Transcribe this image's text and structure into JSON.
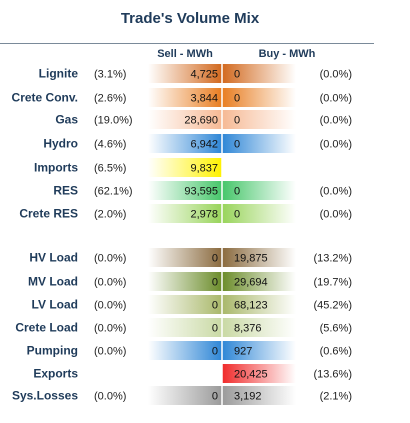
{
  "chart_data": {
    "type": "table",
    "title": "Trade's Volume Mix",
    "columns": [
      "Sell - MWh",
      "Buy - MWh"
    ],
    "rows": [
      {
        "label": "Lignite",
        "sell_pct": "(3.1%)",
        "sell": "4,725",
        "buy": "0",
        "buy_pct": "(0.0%)",
        "sell_color": "#d2691e",
        "buy_color": "#d2691e"
      },
      {
        "label": "Crete Conv.",
        "sell_pct": "(2.6%)",
        "sell": "3,844",
        "buy": "0",
        "buy_pct": "(0.0%)",
        "sell_color": "#e87d20",
        "buy_color": "#e87d20"
      },
      {
        "label": "Gas",
        "sell_pct": "(19.0%)",
        "sell": "28,690",
        "buy": "0",
        "buy_pct": "(0.0%)",
        "sell_color": "#f6b994",
        "buy_color": "#f6b994"
      },
      {
        "label": "Hydro",
        "sell_pct": "(4.6%)",
        "sell": "6,942",
        "buy": "0",
        "buy_pct": "(0.0%)",
        "sell_color": "#2e86d6",
        "buy_color": "#2e86d6"
      },
      {
        "label": "Imports",
        "sell_pct": "(6.5%)",
        "sell": "9,837",
        "buy": "",
        "buy_pct": "",
        "sell_color": "#fff200",
        "buy_color": "#ffffff"
      },
      {
        "label": "RES",
        "sell_pct": "(62.1%)",
        "sell": "93,595",
        "buy": "0",
        "buy_pct": "(0.0%)",
        "sell_color": "#46c66a",
        "buy_color": "#46c66a"
      },
      {
        "label": "Crete RES",
        "sell_pct": "(2.0%)",
        "sell": "2,978",
        "buy": "0",
        "buy_pct": "(0.0%)",
        "sell_color": "#98d45a",
        "buy_color": "#98d45a"
      },
      {
        "label": "HV Load",
        "sell_pct": "(0.0%)",
        "sell": "0",
        "buy": "19,875",
        "buy_pct": "(13.2%)",
        "sell_color": "#8a6a3e",
        "buy_color": "#8a6a3e"
      },
      {
        "label": "MV Load",
        "sell_pct": "(0.0%)",
        "sell": "0",
        "buy": "29,694",
        "buy_pct": "(19.7%)",
        "sell_color": "#6b8c2a",
        "buy_color": "#6b8c2a"
      },
      {
        "label": "LV Load",
        "sell_pct": "(0.0%)",
        "sell": "0",
        "buy": "68,123",
        "buy_pct": "(45.2%)",
        "sell_color": "#a9b86a",
        "buy_color": "#a9b86a"
      },
      {
        "label": "Crete Load",
        "sell_pct": "(0.0%)",
        "sell": "0",
        "buy": "8,376",
        "buy_pct": "(5.6%)",
        "sell_color": "#c9d9a4",
        "buy_color": "#c9d9a4"
      },
      {
        "label": "Pumping",
        "sell_pct": "(0.0%)",
        "sell": "0",
        "buy": "927",
        "buy_pct": "(0.6%)",
        "sell_color": "#2e86d6",
        "buy_color": "#2e86d6"
      },
      {
        "label": "Exports",
        "sell_pct": "",
        "sell": "",
        "buy": "20,425",
        "buy_pct": "(13.6%)",
        "sell_color": "#ffffff",
        "buy_color": "#f02a2a"
      },
      {
        "label": "Sys.Losses",
        "sell_pct": "(0.0%)",
        "sell": "0",
        "buy": "3,192",
        "buy_pct": "(2.1%)",
        "sell_color": "#9a9a9a",
        "buy_color": "#9a9a9a"
      }
    ]
  }
}
